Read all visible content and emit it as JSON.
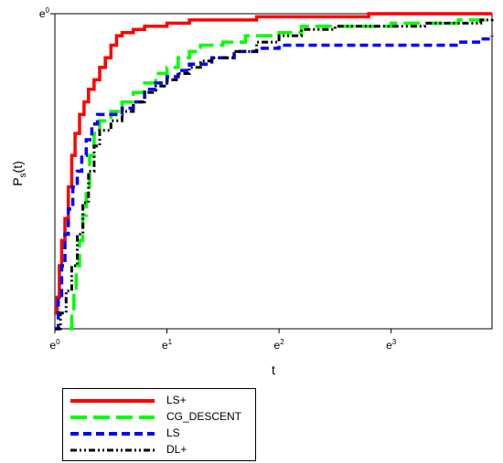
{
  "chart_data": {
    "type": "line",
    "title": "",
    "xlabel": "t",
    "ylabel_main": "P",
    "ylabel_sub": "s",
    "ylabel_tail": "(t)",
    "x_scale": "log (base e)",
    "xlim": [
      0,
      3.9
    ],
    "ylim": [
      0,
      1
    ],
    "x_ticks": [
      {
        "value": 0,
        "base": "e",
        "exp": "0"
      },
      {
        "value": 1,
        "base": "e",
        "exp": "1"
      },
      {
        "value": 2,
        "base": "e",
        "exp": "2"
      },
      {
        "value": 3,
        "base": "e",
        "exp": "3"
      }
    ],
    "y_ticks": [
      {
        "value": 1,
        "base": "e",
        "exp": "0"
      }
    ],
    "grid": false,
    "legend_position": "below-left",
    "series": [
      {
        "name": "LS+",
        "color": "#ff0000",
        "dash": "solid",
        "points": [
          [
            0,
            0.05
          ],
          [
            0.02,
            0.1
          ],
          [
            0.04,
            0.2
          ],
          [
            0.06,
            0.28
          ],
          [
            0.09,
            0.35
          ],
          [
            0.12,
            0.45
          ],
          [
            0.15,
            0.55
          ],
          [
            0.18,
            0.62
          ],
          [
            0.22,
            0.68
          ],
          [
            0.26,
            0.72
          ],
          [
            0.3,
            0.76
          ],
          [
            0.35,
            0.79
          ],
          [
            0.4,
            0.83
          ],
          [
            0.45,
            0.86
          ],
          [
            0.5,
            0.9
          ],
          [
            0.55,
            0.93
          ],
          [
            0.6,
            0.94
          ],
          [
            0.7,
            0.95
          ],
          [
            0.8,
            0.96
          ],
          [
            0.9,
            0.96
          ],
          [
            1.0,
            0.97
          ],
          [
            1.2,
            0.98
          ],
          [
            1.5,
            0.98
          ],
          [
            1.8,
            0.99
          ],
          [
            2.0,
            0.99
          ],
          [
            2.5,
            0.99
          ],
          [
            2.8,
            1.0
          ],
          [
            3.9,
            1.0
          ]
        ]
      },
      {
        "name": "CG_DESCENT",
        "color": "#00ff00",
        "dash": "long-dash",
        "points": [
          [
            0.13,
            0
          ],
          [
            0.15,
            0.05
          ],
          [
            0.17,
            0.12
          ],
          [
            0.19,
            0.2
          ],
          [
            0.22,
            0.28
          ],
          [
            0.25,
            0.36
          ],
          [
            0.28,
            0.45
          ],
          [
            0.31,
            0.55
          ],
          [
            0.35,
            0.62
          ],
          [
            0.4,
            0.66
          ],
          [
            0.5,
            0.69
          ],
          [
            0.6,
            0.72
          ],
          [
            0.7,
            0.75
          ],
          [
            0.8,
            0.78
          ],
          [
            0.9,
            0.81
          ],
          [
            1.0,
            0.83
          ],
          [
            1.1,
            0.86
          ],
          [
            1.2,
            0.88
          ],
          [
            1.3,
            0.9
          ],
          [
            1.5,
            0.91
          ],
          [
            1.7,
            0.93
          ],
          [
            2.0,
            0.94
          ],
          [
            2.2,
            0.96
          ],
          [
            2.5,
            0.96
          ],
          [
            2.8,
            0.96
          ],
          [
            3.0,
            0.97
          ],
          [
            3.4,
            0.97
          ],
          [
            3.6,
            0.98
          ],
          [
            3.9,
            0.98
          ]
        ]
      },
      {
        "name": "LS",
        "color": "#0000ff",
        "dash": "dash",
        "points": [
          [
            0,
            0.0
          ],
          [
            0.03,
            0.1
          ],
          [
            0.06,
            0.2
          ],
          [
            0.09,
            0.3
          ],
          [
            0.12,
            0.38
          ],
          [
            0.16,
            0.45
          ],
          [
            0.2,
            0.5
          ],
          [
            0.24,
            0.55
          ],
          [
            0.28,
            0.6
          ],
          [
            0.33,
            0.65
          ],
          [
            0.38,
            0.68
          ],
          [
            0.5,
            0.68
          ],
          [
            0.6,
            0.7
          ],
          [
            0.7,
            0.72
          ],
          [
            0.8,
            0.76
          ],
          [
            0.9,
            0.78
          ],
          [
            1.0,
            0.8
          ],
          [
            1.1,
            0.82
          ],
          [
            1.2,
            0.84
          ],
          [
            1.4,
            0.86
          ],
          [
            1.6,
            0.88
          ],
          [
            1.8,
            0.89
          ],
          [
            2.0,
            0.9
          ],
          [
            2.5,
            0.9
          ],
          [
            3.0,
            0.9
          ],
          [
            3.6,
            0.91
          ],
          [
            3.8,
            0.92
          ],
          [
            3.9,
            0.93
          ]
        ]
      },
      {
        "name": "DL+",
        "color": "#000000",
        "dash": "dash-dot-dot",
        "points": [
          [
            0,
            0
          ],
          [
            0.05,
            0.05
          ],
          [
            0.1,
            0.12
          ],
          [
            0.15,
            0.2
          ],
          [
            0.2,
            0.3
          ],
          [
            0.25,
            0.4
          ],
          [
            0.3,
            0.5
          ],
          [
            0.35,
            0.58
          ],
          [
            0.4,
            0.63
          ],
          [
            0.5,
            0.66
          ],
          [
            0.6,
            0.69
          ],
          [
            0.7,
            0.72
          ],
          [
            0.8,
            0.75
          ],
          [
            0.9,
            0.77
          ],
          [
            1.0,
            0.79
          ],
          [
            1.1,
            0.81
          ],
          [
            1.2,
            0.83
          ],
          [
            1.3,
            0.85
          ],
          [
            1.4,
            0.86
          ],
          [
            1.6,
            0.88
          ],
          [
            1.8,
            0.91
          ],
          [
            2.0,
            0.93
          ],
          [
            2.2,
            0.95
          ],
          [
            2.5,
            0.96
          ],
          [
            2.8,
            0.96
          ],
          [
            3.0,
            0.96
          ],
          [
            3.3,
            0.97
          ],
          [
            3.6,
            0.97
          ],
          [
            3.8,
            0.98
          ],
          [
            3.9,
            0.99
          ]
        ]
      }
    ]
  }
}
